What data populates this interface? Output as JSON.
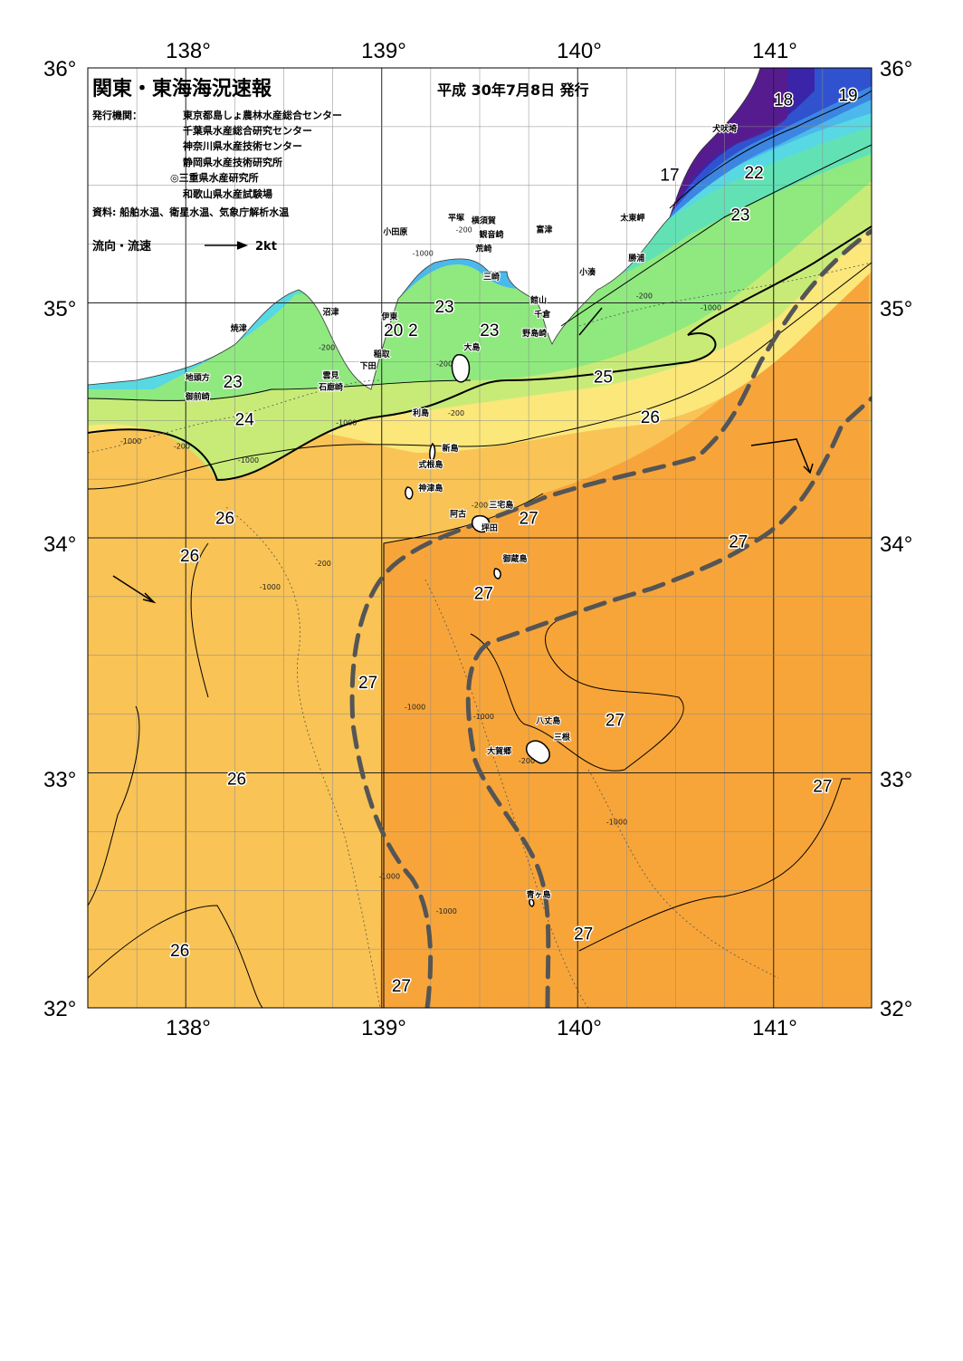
{
  "header": {
    "title": "関東・東海海況速報",
    "date": "平成 30年7月8日 発行",
    "issuer_label": "発行機関：",
    "issuers": [
      "東京都島しょ農林水産総合センター",
      "千葉県水産総合研究センター",
      "神奈川県水産技術センター",
      "静岡県水産技術研究所",
      "◎三重県水産研究所",
      "和歌山県水産試験場"
    ],
    "source": "資料: 船舶水温、衛星水温、気象庁解析水温",
    "legend_label": "流向・流速",
    "legend_scale": "2kt"
  },
  "axes": {
    "lon_ticks": [
      "138°",
      "139°",
      "140°",
      "141°"
    ],
    "lat_ticks": [
      "36°",
      "35°",
      "34°",
      "33°",
      "32°"
    ]
  },
  "isotherm_labels": [
    {
      "text": "19",
      "lon": 141.38,
      "lat": 35.86
    },
    {
      "text": "18",
      "lon": 141.05,
      "lat": 35.84
    },
    {
      "text": "17",
      "lon": 140.47,
      "lat": 35.52
    },
    {
      "text": "22",
      "lon": 140.9,
      "lat": 35.53
    },
    {
      "text": "23",
      "lon": 140.83,
      "lat": 35.35
    },
    {
      "text": "23",
      "lon": 139.32,
      "lat": 34.96
    },
    {
      "text": "20",
      "lon": 139.06,
      "lat": 34.86
    },
    {
      "text": "2",
      "lon": 139.16,
      "lat": 34.86
    },
    {
      "text": "23",
      "lon": 139.55,
      "lat": 34.86
    },
    {
      "text": "23",
      "lon": 138.24,
      "lat": 34.64
    },
    {
      "text": "25",
      "lon": 140.13,
      "lat": 34.66
    },
    {
      "text": "24",
      "lon": 138.3,
      "lat": 34.48
    },
    {
      "text": "26",
      "lon": 140.37,
      "lat": 34.49
    },
    {
      "text": "26",
      "lon": 138.2,
      "lat": 34.06
    },
    {
      "text": "27",
      "lon": 139.75,
      "lat": 34.06
    },
    {
      "text": "27",
      "lon": 140.82,
      "lat": 33.96
    },
    {
      "text": "26",
      "lon": 138.02,
      "lat": 33.9
    },
    {
      "text": "27",
      "lon": 139.52,
      "lat": 33.74
    },
    {
      "text": "27",
      "lon": 138.93,
      "lat": 33.36
    },
    {
      "text": "27",
      "lon": 140.19,
      "lat": 33.2
    },
    {
      "text": "26",
      "lon": 138.26,
      "lat": 32.95
    },
    {
      "text": "27",
      "lon": 141.25,
      "lat": 32.92
    },
    {
      "text": "27",
      "lon": 140.03,
      "lat": 32.29
    },
    {
      "text": "26",
      "lon": 137.97,
      "lat": 32.22
    },
    {
      "text": "27",
      "lon": 139.1,
      "lat": 32.07
    }
  ],
  "place_names": [
    {
      "text": "犬吠埼",
      "lon": 140.75,
      "lat": 35.73
    },
    {
      "text": "太東岬",
      "lon": 140.28,
      "lat": 35.35
    },
    {
      "text": "勝浦",
      "lon": 140.3,
      "lat": 35.18
    },
    {
      "text": "小湊",
      "lon": 140.05,
      "lat": 35.12
    },
    {
      "text": "富津",
      "lon": 139.83,
      "lat": 35.3
    },
    {
      "text": "平塚",
      "lon": 139.38,
      "lat": 35.35
    },
    {
      "text": "横須賀",
      "lon": 139.52,
      "lat": 35.34
    },
    {
      "text": "観音崎",
      "lon": 139.56,
      "lat": 35.28
    },
    {
      "text": "荒崎",
      "lon": 139.52,
      "lat": 35.22
    },
    {
      "text": "小田原",
      "lon": 139.07,
      "lat": 35.29
    },
    {
      "text": "三崎",
      "lon": 139.56,
      "lat": 35.1
    },
    {
      "text": "館山",
      "lon": 139.8,
      "lat": 35.0
    },
    {
      "text": "千倉",
      "lon": 139.82,
      "lat": 34.94
    },
    {
      "text": "野島崎",
      "lon": 139.78,
      "lat": 34.86
    },
    {
      "text": "沼津",
      "lon": 138.74,
      "lat": 34.95
    },
    {
      "text": "伊東",
      "lon": 139.04,
      "lat": 34.93
    },
    {
      "text": "焼津",
      "lon": 138.27,
      "lat": 34.88
    },
    {
      "text": "稲取",
      "lon": 139.0,
      "lat": 34.77
    },
    {
      "text": "下田",
      "lon": 138.93,
      "lat": 34.72
    },
    {
      "text": "雲見",
      "lon": 138.74,
      "lat": 34.68
    },
    {
      "text": "石廊崎",
      "lon": 138.74,
      "lat": 34.63
    },
    {
      "text": "地頭方",
      "lon": 138.06,
      "lat": 34.67
    },
    {
      "text": "御前崎",
      "lon": 138.06,
      "lat": 34.59
    },
    {
      "text": "大島",
      "lon": 139.46,
      "lat": 34.8
    },
    {
      "text": "利島",
      "lon": 139.2,
      "lat": 34.52
    },
    {
      "text": "新島",
      "lon": 139.35,
      "lat": 34.37
    },
    {
      "text": "式根島",
      "lon": 139.25,
      "lat": 34.3
    },
    {
      "text": "神津島",
      "lon": 139.25,
      "lat": 34.2
    },
    {
      "text": "三宅島",
      "lon": 139.61,
      "lat": 34.13
    },
    {
      "text": "阿古",
      "lon": 139.39,
      "lat": 34.09
    },
    {
      "text": "坪田",
      "lon": 139.55,
      "lat": 34.03
    },
    {
      "text": "御蔵島",
      "lon": 139.68,
      "lat": 33.9
    },
    {
      "text": "八丈島",
      "lon": 139.85,
      "lat": 33.21
    },
    {
      "text": "三根",
      "lon": 139.92,
      "lat": 33.14
    },
    {
      "text": "大賀郷",
      "lon": 139.6,
      "lat": 33.08
    },
    {
      "text": "青ヶ島",
      "lon": 139.8,
      "lat": 32.47
    }
  ],
  "depth_labels": [
    {
      "text": "-200",
      "lon": 139.42,
      "lat": 35.3
    },
    {
      "text": "-1000",
      "lon": 139.21,
      "lat": 35.2
    },
    {
      "text": "-200",
      "lon": 140.34,
      "lat": 35.02
    },
    {
      "text": "-1000",
      "lon": 140.68,
      "lat": 34.97
    },
    {
      "text": "-200",
      "lon": 138.72,
      "lat": 34.8
    },
    {
      "text": "-200",
      "lon": 139.32,
      "lat": 34.73
    },
    {
      "text": "-200",
      "lon": 139.38,
      "lat": 34.52
    },
    {
      "text": "-1000",
      "lon": 138.82,
      "lat": 34.48
    },
    {
      "text": "-1000",
      "lon": 137.72,
      "lat": 34.4
    },
    {
      "text": "-200",
      "lon": 137.98,
      "lat": 34.38
    },
    {
      "text": "-1000",
      "lon": 138.32,
      "lat": 34.32
    },
    {
      "text": "-200",
      "lon": 138.7,
      "lat": 33.88
    },
    {
      "text": "-1000",
      "lon": 138.43,
      "lat": 33.78
    },
    {
      "text": "-200",
      "lon": 139.5,
      "lat": 34.13
    },
    {
      "text": "-1000",
      "lon": 139.17,
      "lat": 33.27
    },
    {
      "text": "-1000",
      "lon": 139.52,
      "lat": 33.23
    },
    {
      "text": "-200",
      "lon": 139.74,
      "lat": 33.04
    },
    {
      "text": "-1000",
      "lon": 140.2,
      "lat": 32.78
    },
    {
      "text": "-1000",
      "lon": 139.04,
      "lat": 32.55
    },
    {
      "text": "-1000",
      "lon": 139.33,
      "lat": 32.4
    }
  ],
  "colors": {
    "t27": "#f7a53a",
    "t26": "#f9c355",
    "t25": "#fbe77a",
    "t24": "#c8eb78",
    "t23": "#8fe97f",
    "t22": "#62e2b4",
    "t21": "#58d8e3",
    "t20": "#4bb9ec",
    "t19": "#3c86e2",
    "t18": "#3052cf",
    "t17": "#3a25a8",
    "t16": "#5a1c8c",
    "front": "#555555",
    "land": "#ffffff"
  }
}
